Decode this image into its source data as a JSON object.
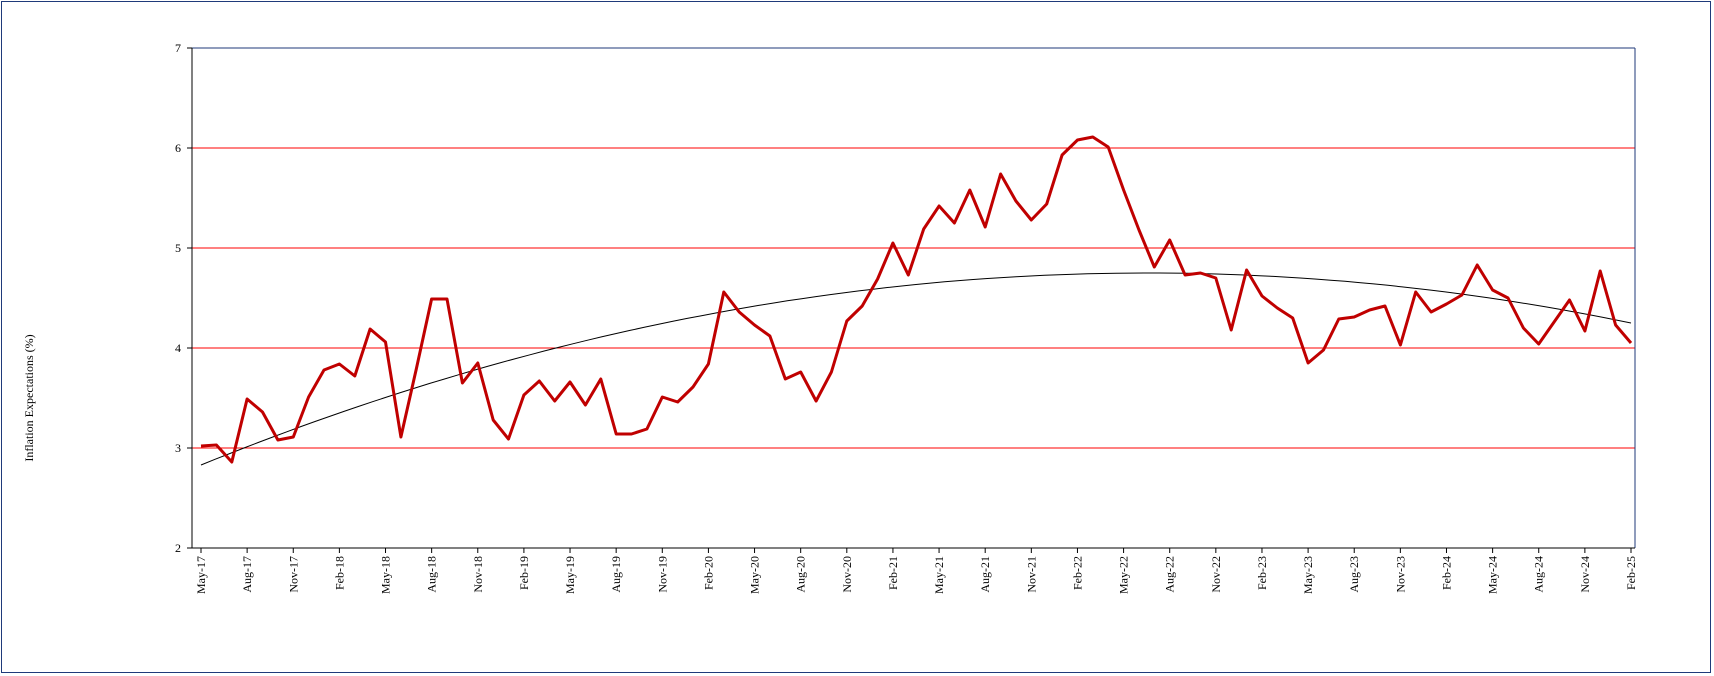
{
  "chart_data": {
    "type": "line",
    "title": "",
    "xlabel": "",
    "ylabel": "Inflation Expectations (%)",
    "ylim": [
      2,
      7
    ],
    "yticks": [
      2,
      3,
      4,
      5,
      6,
      7
    ],
    "grid": "horizontal",
    "legend": "none",
    "x_tick_labels": [
      "May-17",
      "Aug-17",
      "Nov-17",
      "Feb-18",
      "May-18",
      "Aug-18",
      "Nov-18",
      "Feb-19",
      "May-19",
      "Aug-19",
      "Nov-19",
      "Feb-20",
      "May-20",
      "Aug-20",
      "Nov-20",
      "Feb-21",
      "May-21",
      "Aug-21",
      "Nov-21",
      "Feb-22",
      "May-22",
      "Aug-22",
      "Nov-22",
      "Feb-23",
      "May-23",
      "Aug-23",
      "Nov-23",
      "Feb-24",
      "May-24",
      "Aug-24",
      "Nov-24",
      "Feb-25"
    ],
    "series": [
      {
        "color": "#c00000",
        "values": [
          3.02,
          3.03,
          2.86,
          3.49,
          3.36,
          3.08,
          3.11,
          3.51,
          3.78,
          3.84,
          3.72,
          4.19,
          4.06,
          3.11,
          3.79,
          4.49,
          4.49,
          3.65,
          3.85,
          3.28,
          3.09,
          3.53,
          3.67,
          3.47,
          3.66,
          3.43,
          3.69,
          3.14,
          3.14,
          3.19,
          3.51,
          3.46,
          3.61,
          3.84,
          4.56,
          4.36,
          4.23,
          4.12,
          3.69,
          3.76,
          3.47,
          3.76,
          4.27,
          4.42,
          4.69,
          5.05,
          4.73,
          5.19,
          5.42,
          5.25,
          5.58,
          5.21,
          5.74,
          5.47,
          5.28,
          5.44,
          5.93,
          6.08,
          6.11,
          6.01,
          5.58,
          5.18,
          4.81,
          5.08,
          4.73,
          4.75,
          4.7,
          4.18,
          4.78,
          4.52,
          4.4,
          4.3,
          3.85,
          3.98,
          4.29,
          4.31,
          4.38,
          4.42,
          4.03,
          4.56,
          4.36,
          4.44,
          4.53,
          4.83,
          4.58,
          4.5,
          4.2,
          4.04,
          4.26,
          4.48,
          4.17,
          4.77,
          4.23,
          4.05
        ]
      },
      {
        "color": "#000000",
        "values_at_first_middle_peak_last": [
          2.83,
          4.75,
          4.25
        ]
      }
    ]
  }
}
